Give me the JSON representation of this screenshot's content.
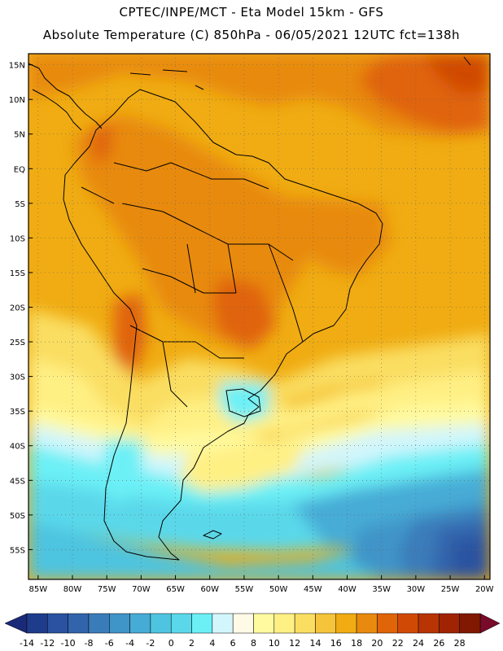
{
  "header": {
    "title_line1": "CPTEC/INPE/MCT  -   Eta Model 15km  -  GFS",
    "title_line2": "Absolute Temperature (C) 850hPa  -  06/05/2021  12UTC  fct=138h"
  },
  "map": {
    "lat_labels": [
      "15N",
      "10N",
      "5N",
      "EQ",
      "5S",
      "10S",
      "15S",
      "20S",
      "25S",
      "30S",
      "35S",
      "40S",
      "45S",
      "50S",
      "55S"
    ],
    "lon_labels": [
      "85W",
      "80W",
      "75W",
      "70W",
      "65W",
      "60W",
      "55W",
      "50W",
      "45W",
      "40W",
      "35W",
      "30W",
      "25W",
      "20W"
    ],
    "lat_values": [
      15,
      10,
      5,
      0,
      -5,
      -10,
      -15,
      -20,
      -25,
      -30,
      -35,
      -40,
      -45,
      -50,
      -55
    ],
    "lon_values": [
      -85,
      -80,
      -75,
      -70,
      -65,
      -60,
      -55,
      -50,
      -45,
      -40,
      -35,
      -30,
      -25,
      -20
    ]
  },
  "legend": {
    "labels": [
      "-14",
      "-12",
      "-10",
      "-8",
      "-6",
      "-4",
      "-2",
      "0",
      "2",
      "4",
      "6",
      "8",
      "10",
      "12",
      "14",
      "16",
      "18",
      "20",
      "22",
      "24",
      "26",
      "28"
    ],
    "colors": [
      "#1f3c8c",
      "#2a52a0",
      "#3264ac",
      "#3a7cba",
      "#3f94c8",
      "#46acd6",
      "#4ec4e0",
      "#5ad8ea",
      "#6cf0f6",
      "#d2f6fc",
      "#fffae6",
      "#fffaa0",
      "#fff084",
      "#fade62",
      "#f5c43a",
      "#f0ac12",
      "#e88a0e",
      "#e06408",
      "#d04a06",
      "#b83404",
      "#a02404",
      "#801802"
    ],
    "end_low_color": "#1a2a78",
    "end_high_color": "#780a2a"
  }
}
